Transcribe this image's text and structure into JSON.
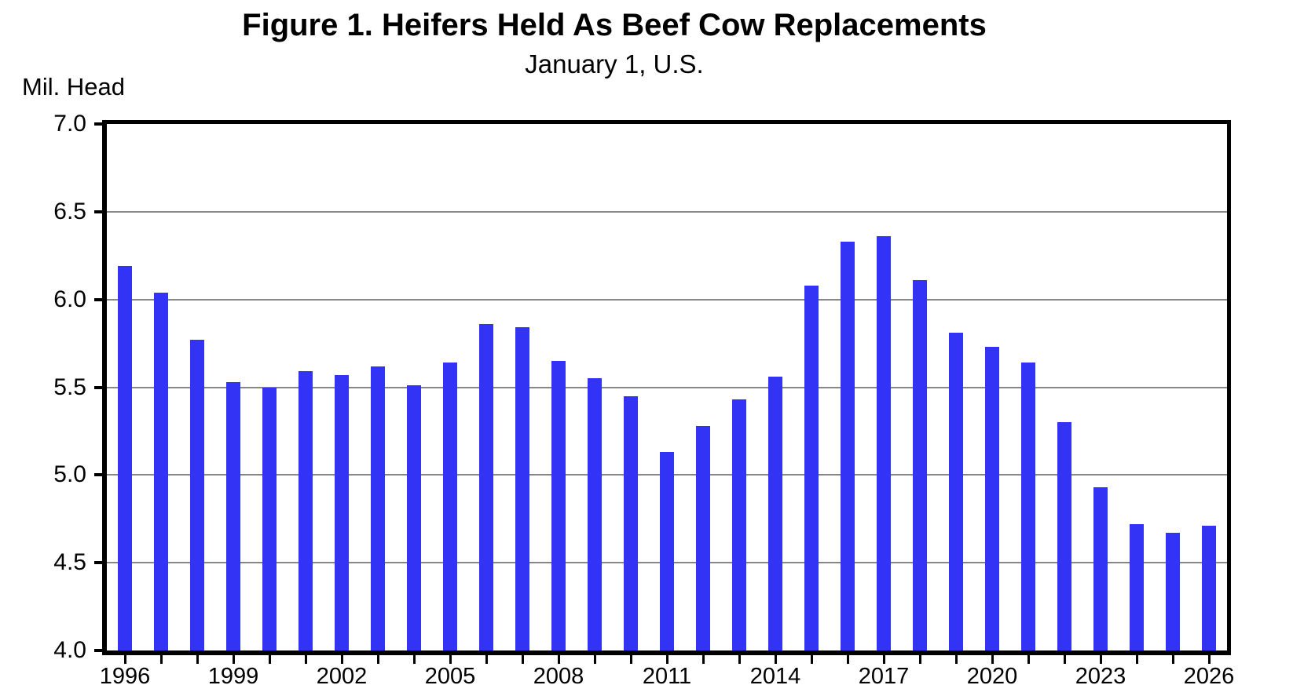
{
  "header": {
    "title": "Figure 1. Heifers Held As Beef Cow Replacements",
    "subtitle": "January 1, U.S."
  },
  "chart_data": {
    "type": "bar",
    "title": "Figure 1. Heifers Held As Beef Cow Replacements",
    "subtitle": "January 1, U.S.",
    "xlabel": "",
    "ylabel": "Mil. Head",
    "ylim": [
      4.0,
      7.0
    ],
    "ytick_interval": 0.5,
    "ytick_values": [
      4.0,
      4.5,
      5.0,
      5.5,
      6.0,
      6.5,
      7.0
    ],
    "ytick_labels": [
      "4.0",
      "4.5",
      "5.0",
      "5.5",
      "6.0",
      "6.5",
      "7.0"
    ],
    "xtick_labeled_years": [
      1996,
      1999,
      2002,
      2005,
      2008,
      2011,
      2014,
      2017,
      2020,
      2023,
      2026
    ],
    "grid": "horizontal-gray",
    "legend": "none",
    "bar_color": "#3333F5",
    "gridline_color": "#878787",
    "axis_color": "#000000",
    "categories": [
      1996,
      1997,
      1998,
      1999,
      2000,
      2001,
      2002,
      2003,
      2004,
      2005,
      2006,
      2007,
      2008,
      2009,
      2010,
      2011,
      2012,
      2013,
      2014,
      2015,
      2016,
      2017,
      2018,
      2019,
      2020,
      2021,
      2022,
      2023,
      2024,
      2025,
      2026
    ],
    "values": [
      6.19,
      6.04,
      5.77,
      5.53,
      5.5,
      5.59,
      5.57,
      5.62,
      5.51,
      5.64,
      5.86,
      5.84,
      5.65,
      5.55,
      5.45,
      5.13,
      5.28,
      5.43,
      5.56,
      6.08,
      6.33,
      6.36,
      6.11,
      5.81,
      5.73,
      5.64,
      5.3,
      4.93,
      4.72,
      4.67,
      4.71
    ]
  }
}
